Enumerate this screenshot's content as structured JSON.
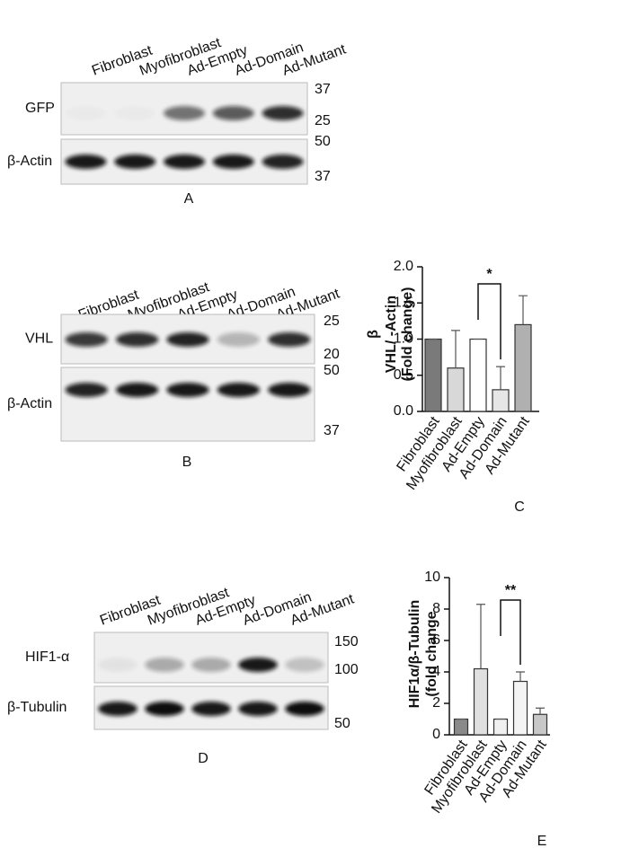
{
  "blots": [
    {
      "panel": "A",
      "lanes": [
        "Fibroblast",
        "Myofibroblast",
        "Ad-Empty",
        "Ad-Domain",
        "Ad-Mutant"
      ],
      "rows": [
        {
          "label": "GFP",
          "markers": [
            "37",
            "25"
          ]
        },
        {
          "label": "β-Actin",
          "markers": [
            "50",
            "37"
          ]
        }
      ]
    },
    {
      "panel": "B",
      "lanes": [
        "Fibroblast",
        "Myofibroblast",
        "Ad-Empty",
        "Ad-Domain",
        "Ad-Mutant"
      ],
      "rows": [
        {
          "label": "VHL",
          "markers": [
            "25",
            "20"
          ]
        },
        {
          "label": "β-Actin",
          "markers": [
            "50",
            "37"
          ]
        }
      ]
    },
    {
      "panel": "D",
      "lanes": [
        "Fibroblast",
        "Myofibroblast",
        "Ad-Empty",
        "Ad-Domain",
        "Ad-Mutant"
      ],
      "rows": [
        {
          "label": "HIF1-α",
          "markers": [
            "150",
            "100"
          ]
        },
        {
          "label": "β-Tubulin",
          "markers": [
            "50"
          ]
        }
      ]
    }
  ],
  "chart_data": [
    {
      "type": "bar",
      "panel": "C",
      "ylabel": [
        "β",
        "VHL/ -Actin",
        "(Fold change)"
      ],
      "categories": [
        "Fibroblast",
        "Myofibroblast",
        "Ad-Empty",
        "Ad-Domain",
        "Ad-Mutant"
      ],
      "values": [
        1.0,
        0.6,
        1.0,
        0.3,
        1.2
      ],
      "errors": [
        0,
        0.52,
        0,
        0.32,
        0.4
      ],
      "colors": [
        "#7a7a7a",
        "#d8d8d8",
        "#ffffff",
        "#e6e6e6",
        "#b0b0b0"
      ],
      "ylim": [
        0,
        2
      ],
      "yticks": [
        {
          "value": 0,
          "label": "0.0"
        },
        {
          "value": 0.5,
          "label": "0.5"
        },
        {
          "value": 1,
          "label": "1.0"
        },
        {
          "value": 1.5,
          "label": "1.5"
        },
        {
          "value": 2,
          "label": "2.0"
        }
      ],
      "annotation": "*"
    },
    {
      "type": "bar",
      "panel": "E",
      "ylabel": [
        "HIF1α/β-Tubulin",
        "(fold change"
      ],
      "categories": [
        "Fibroblast",
        "Myofibroblast",
        "Ad-Empty",
        "Ad-Domain",
        "Ad-Mutant"
      ],
      "values": [
        1.0,
        4.2,
        1.0,
        3.4,
        1.3
      ],
      "errors": [
        0,
        4.1,
        0,
        0.6,
        0.4
      ],
      "colors": [
        "#8a8a8a",
        "#e0e0e0",
        "#f0f0f0",
        "#f4f4f4",
        "#c8c8c8"
      ],
      "ylim": [
        0,
        10
      ],
      "yticks": [
        0,
        2,
        4,
        6,
        8,
        10
      ],
      "annotation": "**"
    }
  ]
}
